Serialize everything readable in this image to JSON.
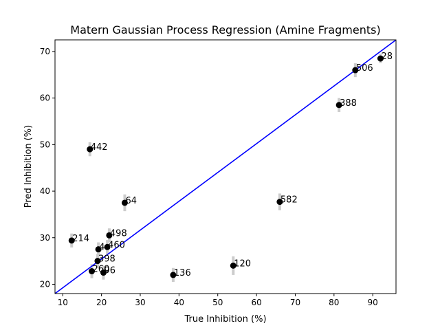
{
  "chart_data": {
    "type": "scatter",
    "title": "Matern Gaussian Process Regression (Amine Fragments)",
    "xlabel": "True Inhibition (%)",
    "ylabel": "Pred Inhibition (%)",
    "xlim": [
      8,
      96
    ],
    "ylim": [
      18,
      72.5
    ],
    "xticks": [
      10,
      20,
      30,
      40,
      50,
      60,
      70,
      80,
      90
    ],
    "yticks": [
      20,
      30,
      40,
      50,
      60,
      70
    ],
    "grid": false,
    "points": [
      {
        "label": "28",
        "x": 92.0,
        "y": 68.5,
        "err": 1.0
      },
      {
        "label": "506",
        "x": 85.5,
        "y": 66.0,
        "err": 1.5
      },
      {
        "label": "388",
        "x": 81.3,
        "y": 58.5,
        "err": 1.5
      },
      {
        "label": "442",
        "x": 17.0,
        "y": 49.0,
        "err": 1.5
      },
      {
        "label": "64",
        "x": 26.0,
        "y": 37.5,
        "err": 1.8
      },
      {
        "label": "582",
        "x": 66.0,
        "y": 37.7,
        "err": 1.8
      },
      {
        "label": "214",
        "x": 12.3,
        "y": 29.4,
        "err": 1.5
      },
      {
        "label": "498",
        "x": 22.0,
        "y": 30.5,
        "err": 1.5
      },
      {
        "label": "460",
        "x": 21.5,
        "y": 28.0,
        "err": 1.5
      },
      {
        "label": "4",
        "x": 19.2,
        "y": 27.5,
        "err": 1.5
      },
      {
        "label": "398",
        "x": 19.0,
        "y": 25.0,
        "err": 1.5
      },
      {
        "label": "260",
        "x": 17.5,
        "y": 22.8,
        "err": 1.5
      },
      {
        "label": "96",
        "x": 20.5,
        "y": 22.5,
        "err": 1.5
      },
      {
        "label": "136",
        "x": 38.5,
        "y": 22.0,
        "err": 1.5
      },
      {
        "label": "120",
        "x": 54.0,
        "y": 24.0,
        "err": 2.0
      }
    ],
    "reference_line": {
      "from": [
        8,
        18
      ],
      "to": [
        96,
        72.5
      ],
      "color": "#0000ff"
    },
    "colors": {
      "point": "#000000",
      "errorbar": "#cccccc",
      "line": "#0000ff"
    }
  }
}
